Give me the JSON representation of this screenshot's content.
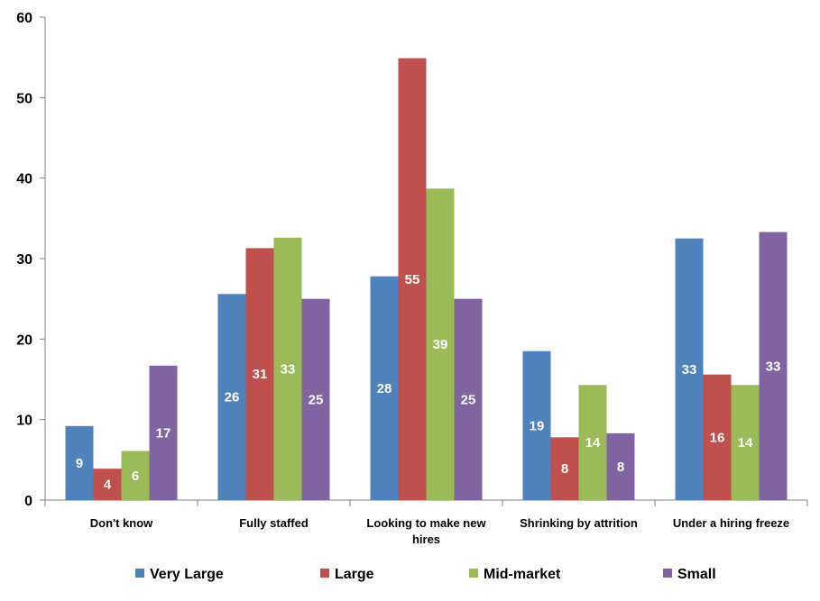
{
  "chart_data": {
    "type": "bar",
    "title": "",
    "xlabel": "",
    "ylabel": "",
    "ylim": [
      0,
      60
    ],
    "yticks": [
      0,
      10,
      20,
      30,
      40,
      50,
      60
    ],
    "grid": false,
    "legend_position": "bottom",
    "categories": [
      [
        "Don't know"
      ],
      [
        "Fully staffed"
      ],
      [
        "Looking to make new",
        "hires"
      ],
      [
        "Shrinking by attrition"
      ],
      [
        "Under a hiring freeze"
      ]
    ],
    "series": [
      {
        "name": "Very Large",
        "color": "#4F81BD",
        "values": [
          9.2,
          25.6,
          27.8,
          18.5,
          32.5
        ],
        "labels": [
          "9",
          "26",
          "28",
          "19",
          "33"
        ]
      },
      {
        "name": "Large",
        "color": "#C0504D",
        "values": [
          3.9,
          31.3,
          54.9,
          7.8,
          15.6
        ],
        "labels": [
          "4",
          "31",
          "55",
          "8",
          "16"
        ]
      },
      {
        "name": "Mid-market",
        "color": "#9BBB59",
        "values": [
          6.1,
          32.6,
          38.7,
          14.3,
          14.3
        ],
        "labels": [
          "6",
          "33",
          "39",
          "14",
          "14"
        ]
      },
      {
        "name": "Small",
        "color": "#8064A2",
        "values": [
          16.7,
          25.0,
          25.0,
          8.3,
          33.3
        ],
        "labels": [
          "17",
          "25",
          "25",
          "8",
          "33"
        ]
      }
    ]
  }
}
